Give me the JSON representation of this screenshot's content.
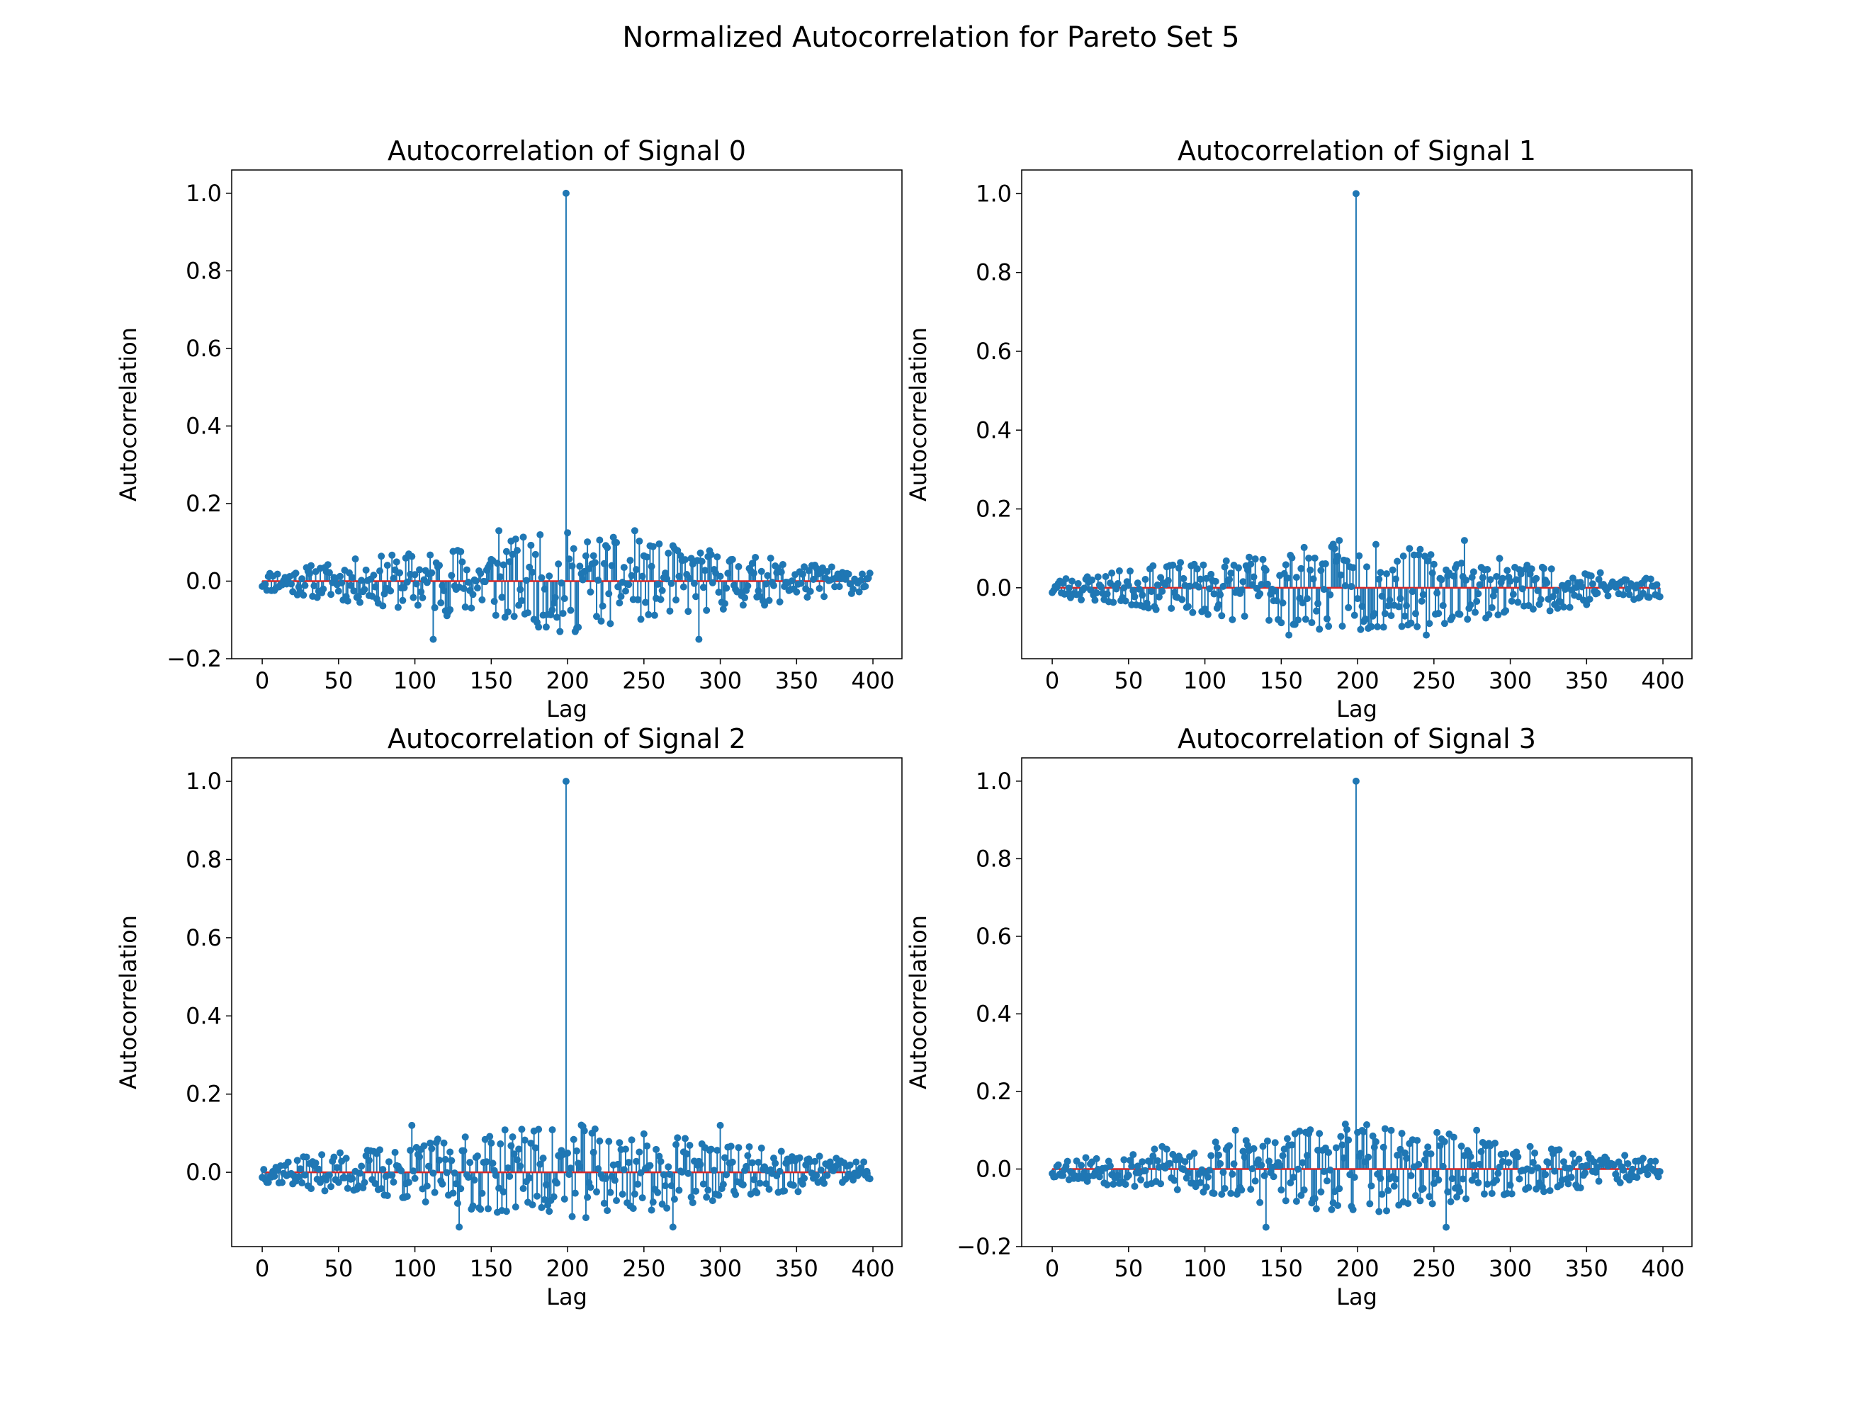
{
  "figure_title": "Normalized Autocorrelation for Pareto Set 5",
  "colors": {
    "stem": "#1f77b4",
    "baseline": "#d62728",
    "axes": "#000000"
  },
  "chart_data": [
    {
      "type": "stem",
      "title": "Autocorrelation of Signal 0",
      "xlabel": "Lag",
      "ylabel": "Autocorrelation",
      "xlim": [
        -20,
        419
      ],
      "ylim": [
        -0.2,
        1.06
      ],
      "xticks": [
        0,
        50,
        100,
        150,
        200,
        250,
        300,
        350,
        400
      ],
      "yticks": [
        -0.2,
        0.0,
        0.2,
        0.4,
        0.6,
        0.8,
        1.0
      ],
      "ytick_labels": [
        "−0.2",
        "0.0",
        "0.2",
        "0.4",
        "0.6",
        "0.8",
        "1.0"
      ],
      "peak": {
        "lag": 199,
        "value": 1.0
      },
      "n_lags": 399,
      "noise_envelope": 0.13,
      "notable_points": [
        {
          "lag": 112,
          "value": -0.15
        },
        {
          "lag": 155,
          "value": 0.13
        },
        {
          "lag": 244,
          "value": 0.13
        },
        {
          "lag": 286,
          "value": -0.15
        },
        {
          "lag": 195,
          "value": -0.13
        },
        {
          "lag": 205,
          "value": -0.13
        }
      ],
      "grid": false
    },
    {
      "type": "stem",
      "title": "Autocorrelation of Signal 1",
      "xlabel": "Lag",
      "ylabel": "Autocorrelation",
      "xlim": [
        -20,
        419
      ],
      "ylim": [
        -0.18,
        1.06
      ],
      "xticks": [
        0,
        50,
        100,
        150,
        200,
        250,
        300,
        350,
        400
      ],
      "yticks": [
        0.0,
        0.2,
        0.4,
        0.6,
        0.8,
        1.0
      ],
      "ytick_labels": [
        "0.0",
        "0.2",
        "0.4",
        "0.6",
        "0.8",
        "1.0"
      ],
      "peak": {
        "lag": 199,
        "value": 1.0
      },
      "n_lags": 399,
      "noise_envelope": 0.12,
      "notable_points": [
        {
          "lag": 188,
          "value": 0.12
        },
        {
          "lag": 212,
          "value": 0.11
        },
        {
          "lag": 155,
          "value": -0.12
        },
        {
          "lag": 245,
          "value": -0.12
        },
        {
          "lag": 270,
          "value": 0.12
        }
      ],
      "grid": false
    },
    {
      "type": "stem",
      "title": "Autocorrelation of Signal 2",
      "xlabel": "Lag",
      "ylabel": "Autocorrelation",
      "xlim": [
        -20,
        419
      ],
      "ylim": [
        -0.19,
        1.06
      ],
      "xticks": [
        0,
        50,
        100,
        150,
        200,
        250,
        300,
        350,
        400
      ],
      "yticks": [
        0.0,
        0.2,
        0.4,
        0.6,
        0.8,
        1.0
      ],
      "ytick_labels": [
        "0.0",
        "0.2",
        "0.4",
        "0.6",
        "0.8",
        "1.0"
      ],
      "peak": {
        "lag": 199,
        "value": 1.0
      },
      "n_lags": 399,
      "noise_envelope": 0.13,
      "notable_points": [
        {
          "lag": 98,
          "value": 0.12
        },
        {
          "lag": 300,
          "value": 0.12
        },
        {
          "lag": 129,
          "value": -0.14
        },
        {
          "lag": 269,
          "value": -0.14
        },
        {
          "lag": 170,
          "value": 0.11
        }
      ],
      "grid": false
    },
    {
      "type": "stem",
      "title": "Autocorrelation of Signal 3",
      "xlabel": "Lag",
      "ylabel": "Autocorrelation",
      "xlim": [
        -20,
        419
      ],
      "ylim": [
        -0.2,
        1.06
      ],
      "xticks": [
        0,
        50,
        100,
        150,
        200,
        250,
        300,
        350,
        400
      ],
      "yticks": [
        -0.2,
        0.0,
        0.2,
        0.4,
        0.6,
        0.8,
        1.0
      ],
      "ytick_labels": [
        "−0.2",
        "0.0",
        "0.2",
        "0.4",
        "0.6",
        "0.8",
        "1.0"
      ],
      "peak": {
        "lag": 199,
        "value": 1.0
      },
      "n_lags": 399,
      "noise_envelope": 0.12,
      "notable_points": [
        {
          "lag": 140,
          "value": -0.15
        },
        {
          "lag": 258,
          "value": -0.15
        },
        {
          "lag": 120,
          "value": 0.1
        },
        {
          "lag": 278,
          "value": 0.1
        }
      ],
      "grid": false
    }
  ]
}
